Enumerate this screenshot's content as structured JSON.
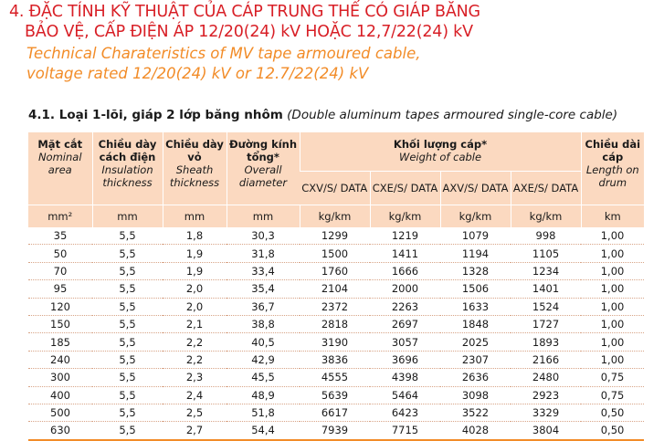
{
  "heading": {
    "vi_line1": "4.  ĐẶC TÍNH KỸ THUẬT CỦA CÁP TRUNG THẾ CÓ GIÁP BĂNG",
    "vi_line2": "BẢO VỆ, CẤP ĐIỆN ÁP 12/20(24) kV HOẶC 12,7/22(24) kV",
    "en_line1": "Technical Charateristics of MV tape armoured cable,",
    "en_line2": "voltage rated 12/20(24) kV or 12.7/22(24) kV"
  },
  "section": {
    "title_vi": "4.1. Loại 1-lõi, giáp 2 lớp băng nhôm",
    "title_en": "(Double aluminum tapes armoured single-core cable)"
  },
  "table": {
    "headers": {
      "area": {
        "vi": "Mặt cắt",
        "en": "Nominal area"
      },
      "insulation": {
        "vi": "Chiều dày cách điện",
        "en": "Insulation thickness"
      },
      "sheath": {
        "vi": "Chiều dày vỏ",
        "en": "Sheath thickness"
      },
      "diameter": {
        "vi": "Đường kính tổng*",
        "en": "Overall diameter"
      },
      "weight": {
        "vi": "Khối lượng cáp*",
        "en": "Weight of cable"
      },
      "weight_types": [
        "CXV/S/ DATA",
        "CXE/S/ DATA",
        "AXV/S/ DATA",
        "AXE/S/ DATA"
      ],
      "length": {
        "vi": "Chiều dài cáp",
        "en": "Length on drum"
      }
    },
    "units": [
      "mm²",
      "mm",
      "mm",
      "mm",
      "kg/km",
      "kg/km",
      "kg/km",
      "kg/km",
      "km"
    ],
    "rows": [
      [
        "35",
        "5,5",
        "1,8",
        "30,3",
        "1299",
        "1219",
        "1079",
        "998",
        "1,00"
      ],
      [
        "50",
        "5,5",
        "1,9",
        "31,8",
        "1500",
        "1411",
        "1194",
        "1105",
        "1,00"
      ],
      [
        "70",
        "5,5",
        "1,9",
        "33,4",
        "1760",
        "1666",
        "1328",
        "1234",
        "1,00"
      ],
      [
        "95",
        "5,5",
        "2,0",
        "35,4",
        "2104",
        "2000",
        "1506",
        "1401",
        "1,00"
      ],
      [
        "120",
        "5,5",
        "2,0",
        "36,7",
        "2372",
        "2263",
        "1633",
        "1524",
        "1,00"
      ],
      [
        "150",
        "5,5",
        "2,1",
        "38,8",
        "2818",
        "2697",
        "1848",
        "1727",
        "1,00"
      ],
      [
        "185",
        "5,5",
        "2,2",
        "40,5",
        "3190",
        "3057",
        "2025",
        "1893",
        "1,00"
      ],
      [
        "240",
        "5,5",
        "2,2",
        "42,9",
        "3836",
        "3696",
        "2307",
        "2166",
        "1,00"
      ],
      [
        "300",
        "5,5",
        "2,3",
        "45,5",
        "4555",
        "4398",
        "2636",
        "2480",
        "0,75"
      ],
      [
        "400",
        "5,5",
        "2,4",
        "48,9",
        "5639",
        "5464",
        "3098",
        "2923",
        "0,75"
      ],
      [
        "500",
        "5,5",
        "2,5",
        "51,8",
        "6617",
        "6423",
        "3522",
        "3329",
        "0,50"
      ],
      [
        "630",
        "5,5",
        "2,7",
        "54,4",
        "7939",
        "7715",
        "4028",
        "3804",
        "0,50"
      ]
    ]
  }
}
